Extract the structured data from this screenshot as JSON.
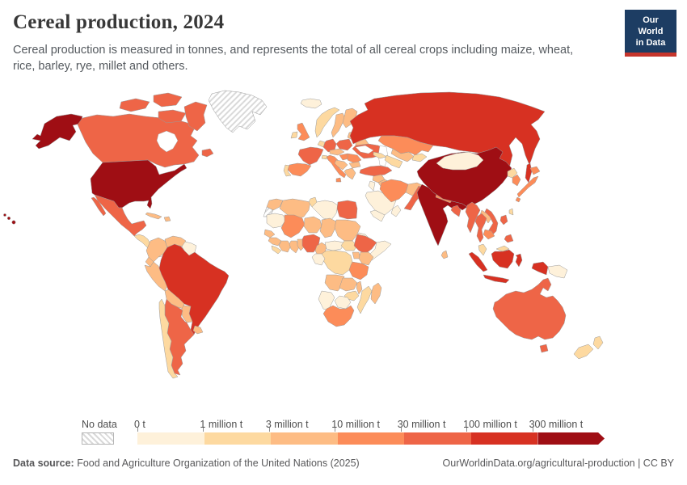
{
  "header": {
    "title": "Cereal production, 2024",
    "subtitle": "Cereal production is measured in tonnes, and represents the total of all cereal crops including maize, wheat, rice, barley, rye, millet and others.",
    "logo_line1": "Our World",
    "logo_line2": "in Data",
    "logo_bg_color": "#1d3d63",
    "logo_accent_color": "#c6352c"
  },
  "legend": {
    "no_data_label": "No data",
    "tick_labels": [
      "0 t",
      "1 million t",
      "3 million t",
      "10 million t",
      "30 million t",
      "100 million t",
      "300 million t"
    ]
  },
  "footer": {
    "source_label": "Data source:",
    "source_text": " Food and Agriculture Organization of the United Nations (2025)",
    "link_text": "OurWorldinData.org/agricultural-production | CC BY"
  },
  "chart_data": {
    "type": "choropleth_map",
    "title": "Cereal production, 2024",
    "unit": "tonnes",
    "projection": "world",
    "bins": [
      {
        "id": "0-1m",
        "label": "0 t",
        "color": "#fef1da"
      },
      {
        "id": "1-3m",
        "label": "1 million t",
        "color": "#fdd9a0"
      },
      {
        "id": "3-10m",
        "label": "3 million t",
        "color": "#fdbc84"
      },
      {
        "id": "10-30m",
        "label": "10 million t",
        "color": "#fc8c59"
      },
      {
        "id": "30-100m",
        "label": "30 million t",
        "color": "#ee6547"
      },
      {
        "id": "100-300m",
        "label": "100 million t",
        "color": "#d73122"
      },
      {
        "id": "300m-plus",
        "label": "300 million t",
        "color": "#9f0e14"
      }
    ],
    "no_data": {
      "label": "No data",
      "pattern": "diagonal-hatch"
    },
    "countries": {
      "united-states": "300m-plus",
      "china": "300m-plus",
      "india": "300m-plus",
      "russia": "100-300m",
      "brazil": "100-300m",
      "indonesia": "100-300m",
      "canada": "30-100m",
      "mexico": "30-100m",
      "argentina": "30-100m",
      "france": "30-100m",
      "germany": "30-100m",
      "poland": "30-100m",
      "ukraine": "30-100m",
      "turkey": "30-100m",
      "australia": "30-100m",
      "pakistan": "30-100m",
      "bangladesh": "30-100m",
      "myanmar": "30-100m",
      "thailand": "30-100m",
      "vietnam": "30-100m",
      "ethiopia": "30-100m",
      "nigeria": "30-100m",
      "philippines": "30-100m",
      "egypt": "30-100m",
      "spain": "10-30m",
      "italy": "10-30m",
      "united-kingdom": "10-30m",
      "romania": "10-30m",
      "hungary": "10-30m",
      "kazakhstan": "10-30m",
      "japan": "10-30m",
      "iran": "10-30m",
      "south-africa": "10-30m",
      "tanzania": "10-30m",
      "south-korea": "10-30m",
      "mali": "10-30m",
      "cambodia": "10-30m",
      "nepal": "10-30m",
      "sweden": "3-10m",
      "finland": "3-10m",
      "denmark": "3-10m",
      "baltics": "3-10m",
      "belarus": "3-10m",
      "austria-czechia": "3-10m",
      "balkans": "3-10m",
      "bulgaria": "3-10m",
      "greece": "3-10m",
      "morocco": "3-10m",
      "algeria": "3-10m",
      "niger": "3-10m",
      "chad": "3-10m",
      "sudan": "3-10m",
      "senegal": "3-10m",
      "guinea": "3-10m",
      "ivory-coast": "3-10m",
      "ghana": "3-10m",
      "togo-benin": "3-10m",
      "cameroon": "3-10m",
      "uganda": "3-10m",
      "kenya": "3-10m",
      "angola": "3-10m",
      "zambia": "3-10m",
      "malawi": "3-10m",
      "madagascar": "3-10m",
      "laos": "3-10m",
      "sri-lanka": "3-10m",
      "kyrgyzstan-tajikistan": "1-3m",
      "afghanistan": "3-10m",
      "iraq": "3-10m",
      "syria": "3-10m",
      "uzbekistan": "3-10m",
      "paraguay": "3-10m",
      "uruguay": "3-10m",
      "bolivia": "3-10m",
      "peru": "3-10m",
      "colombia": "3-10m",
      "venezuela": "3-10m",
      "ecuador": "3-10m",
      "cuba": "3-10m",
      "dominican-republic": "3-10m",
      "norway": "1-3m",
      "ireland": "1-3m",
      "chile": "1-3m",
      "north-korea": "1-3m",
      "malaysia": "1-3m",
      "new-zealand": "1-3m",
      "netherlands-belgium": "1-3m",
      "portugal": "1-3m",
      "switzerland": "1-3m",
      "tunisia": "1-3m",
      "turkmenistan": "1-3m",
      "caucasus": "1-3m",
      "taiwan": "1-3m",
      "sierra-leone-liberia": "1-3m",
      "south-sudan": "1-3m",
      "drc": "1-3m",
      "mozambique": "1-3m",
      "zimbabwe": "1-3m",
      "guatemala-honduras-nicaragua": "1-3m",
      "iceland": "0-1m",
      "mongolia": "0-1m",
      "libya": "0-1m",
      "saudi-arabia": "0-1m",
      "oman": "0-1m",
      "yemen": "0-1m",
      "israel-jordan": "0-1m",
      "eritrea": "0-1m",
      "mauritania": "0-1m",
      "central-african-republic": "0-1m",
      "gabon-congo": "0-1m",
      "somalia": "0-1m",
      "namibia": "0-1m",
      "botswana": "0-1m",
      "guyana-suriname": "0-1m",
      "papua-new-guinea": "0-1m",
      "costa-rica-panama": "0-1m",
      "greenland": "no-data",
      "western-sahara": "no-data"
    }
  }
}
